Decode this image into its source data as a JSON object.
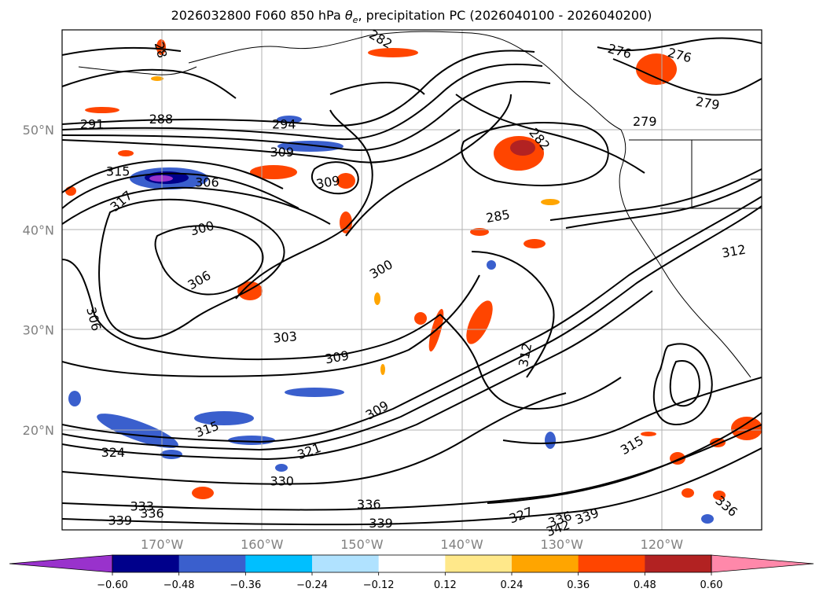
{
  "title": {
    "prefix": "2026032800 F060 850 hPa ",
    "theta_symbol": "θ",
    "theta_sub": "e",
    "suffix": ", precipitation PC (2026040100 - 2026040200)"
  },
  "map": {
    "type": "contour-map",
    "projection": "equirectangular",
    "lon_range": [
      -180,
      -110
    ],
    "lat_range": [
      10,
      60
    ],
    "grid": true,
    "lat_ticks": [
      {
        "label": "50°N",
        "lat": 50
      },
      {
        "label": "40°N",
        "lat": 40
      },
      {
        "label": "30°N",
        "lat": 30
      },
      {
        "label": "20°N",
        "lat": 20
      }
    ],
    "lon_ticks": [
      {
        "label": "170°W",
        "lon": -170
      },
      {
        "label": "160°W",
        "lon": -160
      },
      {
        "label": "150°W",
        "lon": -150
      },
      {
        "label": "140°W",
        "lon": -140
      },
      {
        "label": "130°W",
        "lon": -130
      },
      {
        "label": "120°W",
        "lon": -120
      }
    ],
    "contour_labels": [
      {
        "text": "288",
        "lon": -170.1,
        "lat": 51.1,
        "rot": 0
      },
      {
        "text": "291",
        "lon": -177.0,
        "lat": 50.6,
        "rot": 0
      },
      {
        "text": "294",
        "lon": -157.8,
        "lat": 50.6,
        "rot": 0
      },
      {
        "text": "309",
        "lon": -158.0,
        "lat": 47.8,
        "rot": 0
      },
      {
        "text": "315",
        "lon": -174.4,
        "lat": 45.9,
        "rot": 0
      },
      {
        "text": "306",
        "lon": -165.5,
        "lat": 44.8,
        "rot": 0
      },
      {
        "text": "309",
        "lon": -153.4,
        "lat": 44.8,
        "rot": -10
      },
      {
        "text": "317",
        "lon": -174.1,
        "lat": 42.9,
        "rot": -40
      },
      {
        "text": "300",
        "lon": -166.0,
        "lat": 40.2,
        "rot": -15
      },
      {
        "text": "306",
        "lon": -166.3,
        "lat": 35.0,
        "rot": -30
      },
      {
        "text": "306",
        "lon": -176.8,
        "lat": 31.1,
        "rot": 75
      },
      {
        "text": "300",
        "lon": -148.1,
        "lat": 36.1,
        "rot": -30
      },
      {
        "text": "303",
        "lon": -157.7,
        "lat": 29.3,
        "rot": -5
      },
      {
        "text": "309",
        "lon": -152.5,
        "lat": 27.3,
        "rot": -10
      },
      {
        "text": "312",
        "lon": -133.7,
        "lat": 27.5,
        "rot": -80
      },
      {
        "text": "309",
        "lon": -148.5,
        "lat": 22.0,
        "rot": -30
      },
      {
        "text": "315",
        "lon": -165.5,
        "lat": 20.1,
        "rot": -20
      },
      {
        "text": "324",
        "lon": -174.9,
        "lat": 17.8,
        "rot": 0
      },
      {
        "text": "321",
        "lon": -155.3,
        "lat": 17.9,
        "rot": -20
      },
      {
        "text": "330",
        "lon": -158.0,
        "lat": 14.9,
        "rot": 0
      },
      {
        "text": "336",
        "lon": -149.3,
        "lat": 12.6,
        "rot": 0
      },
      {
        "text": "339",
        "lon": -148.1,
        "lat": 10.7,
        "rot": 0
      },
      {
        "text": "333",
        "lon": -172.0,
        "lat": 12.4,
        "rot": 0
      },
      {
        "text": "336",
        "lon": -171.0,
        "lat": 11.7,
        "rot": 0
      },
      {
        "text": "339",
        "lon": -174.2,
        "lat": 11.0,
        "rot": 0
      },
      {
        "text": "276",
        "lon": -124.2,
        "lat": 57.9,
        "rot": 15
      },
      {
        "text": "276",
        "lon": -118.2,
        "lat": 57.5,
        "rot": 15
      },
      {
        "text": "279",
        "lon": -115.4,
        "lat": 52.7,
        "rot": 10
      },
      {
        "text": "279",
        "lon": -121.7,
        "lat": 50.9,
        "rot": 0
      },
      {
        "text": "282",
        "lon": -132.2,
        "lat": 49.1,
        "rot": 50
      },
      {
        "text": "285",
        "lon": -136.4,
        "lat": 41.4,
        "rot": -10
      },
      {
        "text": "312",
        "lon": -112.8,
        "lat": 37.9,
        "rot": -10
      },
      {
        "text": "315",
        "lon": -123.0,
        "lat": 18.5,
        "rot": -30
      },
      {
        "text": "327",
        "lon": -134.1,
        "lat": 11.5,
        "rot": -20
      },
      {
        "text": "336",
        "lon": -130.2,
        "lat": 11.1,
        "rot": -20
      },
      {
        "text": "339",
        "lon": -127.5,
        "lat": 11.4,
        "rot": -20
      },
      {
        "text": "342",
        "lon": -130.4,
        "lat": 10.2,
        "rot": -20
      },
      {
        "text": "336",
        "lon": -113.5,
        "lat": 12.4,
        "rot": 40
      },
      {
        "text": "28",
        "lon": -170.1,
        "lat": 58.0,
        "rot": 75
      },
      {
        "text": "282",
        "lon": -148.1,
        "lat": 59.1,
        "rot": 30
      }
    ]
  },
  "colorbar": {
    "ticks": [
      "−0.60",
      "−0.48",
      "−0.36",
      "−0.24",
      "−0.12",
      "0.12",
      "0.24",
      "0.36",
      "0.48",
      "0.60"
    ],
    "colors": {
      "under": "#9932cc",
      "bins": [
        "#00008b",
        "#3a5fcd",
        "#00bfff",
        "#b0e2ff",
        "#ffffff",
        "#ffe88a",
        "#ffa500",
        "#ff4500",
        "#b22222"
      ],
      "over": "#ff88aa"
    }
  }
}
